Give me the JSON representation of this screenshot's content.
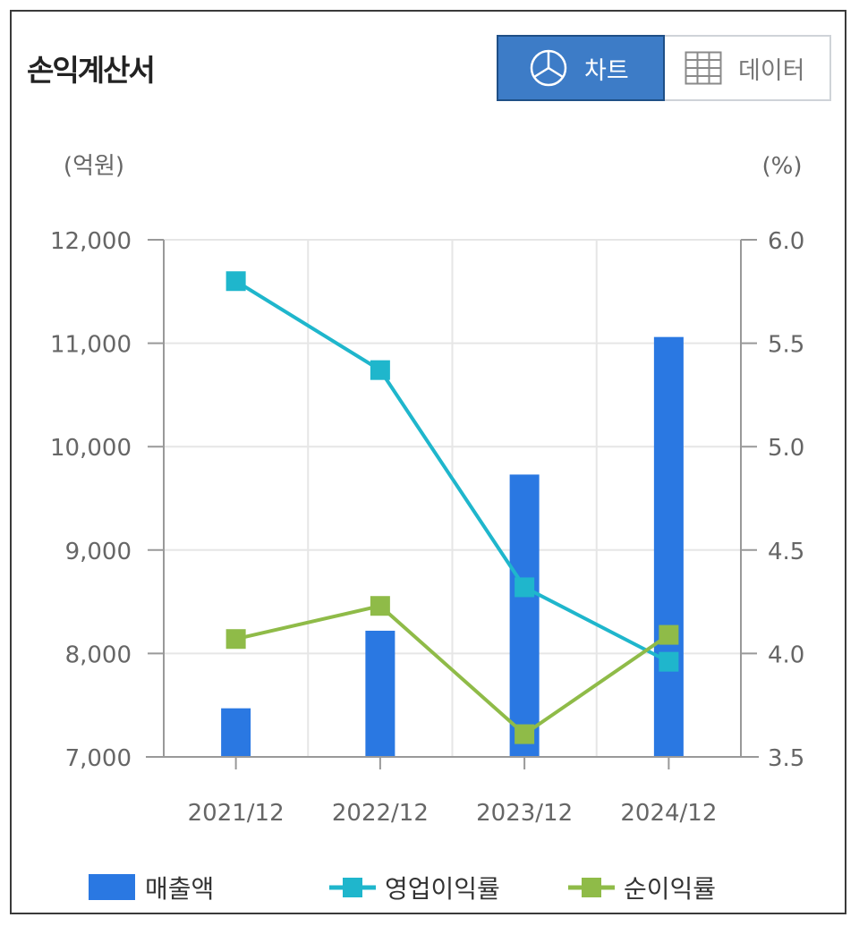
{
  "header": {
    "title": "손익계산서"
  },
  "toggle": {
    "chart_label": "차트",
    "data_label": "데이터",
    "active": "chart"
  },
  "icons": {
    "chart": "pie-chart-icon",
    "data": "table-grid-icon"
  },
  "colors": {
    "revenue": "#2a78e2",
    "op_margin": "#1fb6cc",
    "net_margin": "#8fbb48",
    "toggle_active": "#3d7cc7"
  },
  "chart_data": {
    "type": "bar",
    "categories": [
      "2021/12",
      "2022/12",
      "2023/12",
      "2024/12"
    ],
    "y_unit": "(억원)",
    "y2_unit": "(%)",
    "ylim": [
      7000,
      12000
    ],
    "y_ticks": [
      "12,000",
      "11,000",
      "10,000",
      "9,000",
      "8,000",
      "7,000"
    ],
    "y2lim": [
      3.5,
      6.0
    ],
    "y2_ticks": [
      "6.0",
      "5.5",
      "5.0",
      "4.5",
      "4.0",
      "3.5"
    ],
    "grid": true,
    "legend_position": "bottom",
    "series": [
      {
        "name": "매출액",
        "type": "bar",
        "axis": "left",
        "values": [
          7470,
          8220,
          9730,
          11060
        ]
      },
      {
        "name": "영업이익률",
        "type": "line",
        "axis": "right",
        "values": [
          5.8,
          5.37,
          4.32,
          3.96
        ]
      },
      {
        "name": "순이익률",
        "type": "line",
        "axis": "right",
        "values": [
          4.07,
          4.23,
          3.61,
          4.09
        ]
      }
    ]
  }
}
